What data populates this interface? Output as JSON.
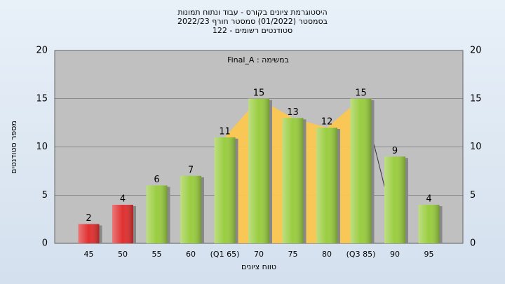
{
  "chart_data": {
    "type": "bar",
    "title": "היסטוגרמת ציונים בקורס - עבוד ונתוח תמונות",
    "subtitle": "בסמסטר  (01/2022)  סמסטר חורף 2022/23",
    "subtitle2": "סטודנטים רשומים - 122",
    "annotation": "Final_A : במשימה",
    "x_label": "טווח ציונים",
    "y_label": "מספר סטודנטים",
    "categories": [
      "45",
      "50",
      "55",
      "60",
      "(Q1 65)",
      "70",
      "75",
      "80",
      "(Q3 85)",
      "90",
      "95"
    ],
    "values": [
      2,
      4,
      6,
      7,
      11,
      15,
      13,
      12,
      15,
      9,
      4
    ],
    "colors": [
      "#e03030",
      "#e03030",
      "#9acd40",
      "#9acd40",
      "#9acd40",
      "#9acd40",
      "#9acd40",
      "#9acd40",
      "#9acd40",
      "#9acd40",
      "#9acd40"
    ],
    "ylim": [
      0,
      20
    ],
    "yticks": [
      0,
      5,
      10,
      15,
      20
    ],
    "grid": true
  }
}
